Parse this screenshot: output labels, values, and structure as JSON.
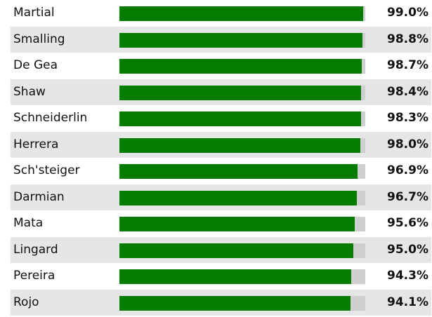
{
  "chart_data": {
    "type": "bar",
    "orientation": "horizontal",
    "categories": [
      "Martial",
      "Smalling",
      "De Gea",
      "Shaw",
      "Schneiderlin",
      "Herrera",
      "Sch'steiger",
      "Darmian",
      "Mata",
      "Lingard",
      "Pereira",
      "Rojo"
    ],
    "values": [
      99.0,
      98.8,
      98.7,
      98.4,
      98.3,
      98.0,
      96.9,
      96.7,
      95.6,
      95.0,
      94.3,
      94.1
    ],
    "value_labels": [
      "99.0%",
      "98.8%",
      "98.7%",
      "98.4%",
      "98.3%",
      "98.0%",
      "96.9%",
      "96.7%",
      "95.6%",
      "95.0%",
      "94.3%",
      "94.1%"
    ],
    "xlim": [
      0,
      100
    ],
    "bar_color": "#067c00",
    "track_color": "#cfcfcf",
    "stripe_color": "#e6e6e6",
    "grid": false,
    "legend": "none"
  }
}
